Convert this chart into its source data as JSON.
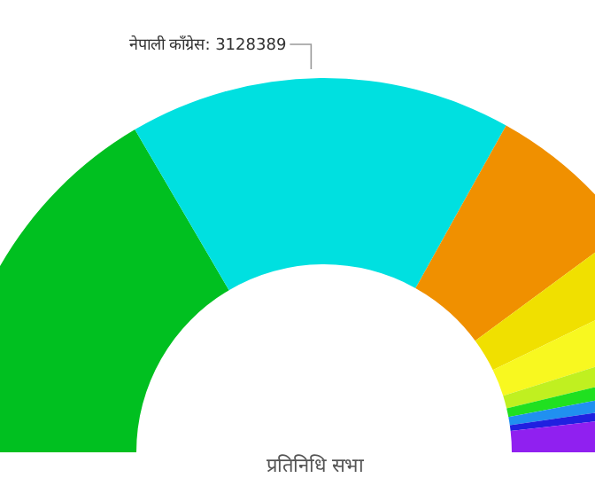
{
  "chart_data": {
    "type": "donut",
    "title": "प्रतिनिधि सभा",
    "categories": [
      null,
      "नेपाली काँग्रेस",
      null,
      null,
      null,
      null,
      null,
      null,
      null,
      null
    ],
    "values": [
      3128000,
      3128389,
      1285000,
      548000,
      444000,
      208000,
      142000,
      132000,
      95000,
      340000
    ],
    "value_labels": [
      null,
      "3128389",
      null,
      null,
      null,
      null,
      null,
      null,
      null,
      null
    ],
    "colors": [
      "#00c020",
      "#00e0e0",
      "#f09000",
      "#f0e000",
      "#f8f820",
      "#c0f020",
      "#20e020",
      "#2090f0",
      "#2020e0",
      "#9020f0"
    ]
  }
}
